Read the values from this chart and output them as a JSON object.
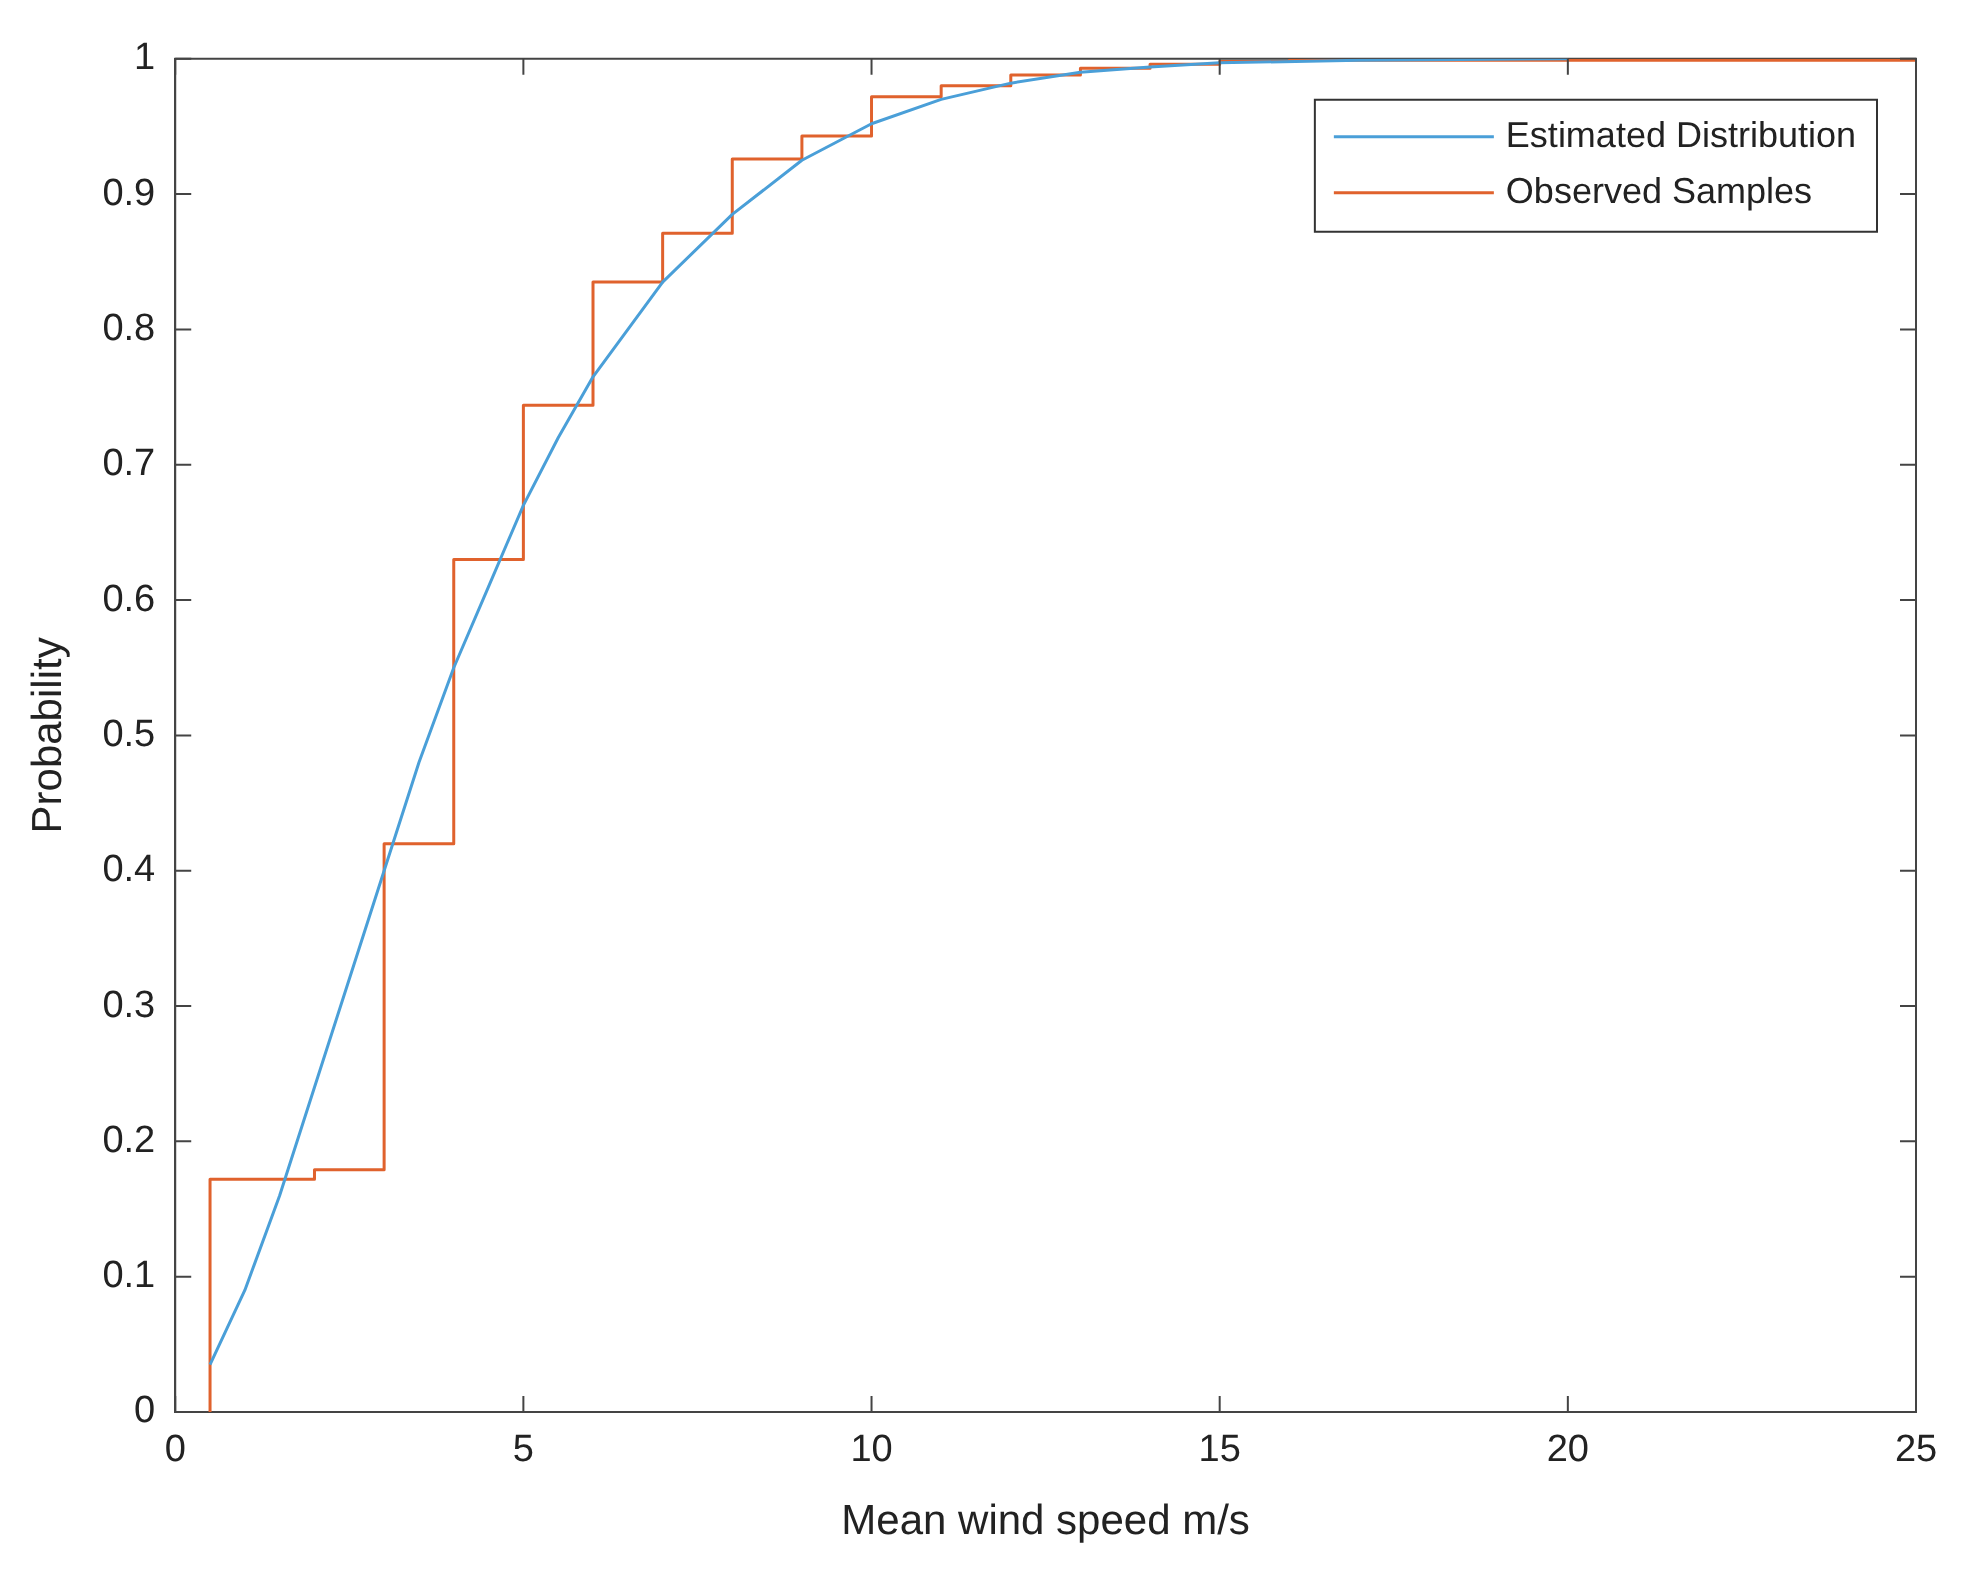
{
  "chart_data": {
    "type": "line",
    "xlabel": "Mean wind speed m/s",
    "ylabel": "Probability",
    "xlim": [
      0,
      25
    ],
    "ylim": [
      0,
      1
    ],
    "xticks": [
      0,
      5,
      10,
      15,
      20,
      25
    ],
    "yticks": [
      0,
      0.1,
      0.2,
      0.3,
      0.4,
      0.5,
      0.6,
      0.7,
      0.8,
      0.9,
      1
    ],
    "legend": "top right",
    "grid": false,
    "marker": "none",
    "series": [
      {
        "name": "Estimated Distribution",
        "type": "line",
        "color": "#4a9fd8",
        "x": [
          0.5,
          1,
          1.5,
          2,
          2.5,
          3,
          3.5,
          4,
          4.5,
          5,
          5.5,
          6,
          7,
          8,
          9,
          10,
          11,
          12,
          13,
          14,
          15,
          17,
          20
        ],
        "values": [
          0.035,
          0.09,
          0.16,
          0.24,
          0.32,
          0.4,
          0.48,
          0.55,
          0.61,
          0.67,
          0.72,
          0.765,
          0.835,
          0.885,
          0.925,
          0.952,
          0.97,
          0.982,
          0.99,
          0.994,
          0.997,
          0.999,
          1
        ]
      },
      {
        "name": "Observed Samples",
        "type": "step",
        "color": "#e0622d",
        "x": [
          0.5,
          0.5,
          2,
          3,
          4,
          5,
          6,
          7,
          8,
          9,
          10,
          11,
          12,
          13,
          14,
          15,
          16,
          25
        ],
        "values": [
          0,
          0.172,
          0.179,
          0.42,
          0.63,
          0.744,
          0.835,
          0.871,
          0.926,
          0.943,
          0.972,
          0.98,
          0.988,
          0.993,
          0.996,
          0.998,
          0.999,
          1
        ]
      }
    ]
  }
}
